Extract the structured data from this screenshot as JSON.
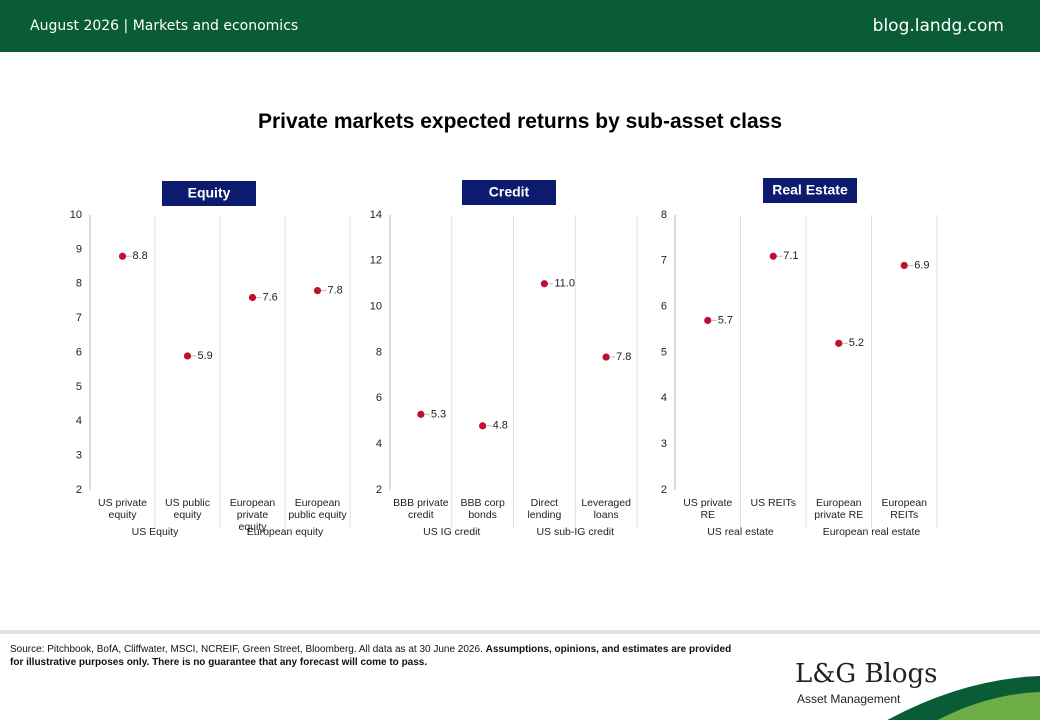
{
  "header": {
    "left": "August 2026 | Markets and economics",
    "right": "blog.landg.com"
  },
  "title": "Private markets expected returns by sub-asset class",
  "chart_data": [
    {
      "type": "dot",
      "title": "Equity",
      "color": "#c0102f",
      "categories": [
        "US private equity",
        "US public equity",
        "European private equity",
        "European public equity"
      ],
      "groups": [
        "US Equity",
        "European equity"
      ],
      "values": [
        8.8,
        5.9,
        7.6,
        7.8
      ],
      "ylim": [
        2,
        10
      ],
      "yticks": [
        2,
        3,
        4,
        5,
        6,
        7,
        8,
        9,
        10
      ]
    },
    {
      "type": "dot",
      "title": "Credit",
      "color": "#c0102f",
      "categories": [
        "BBB private credit",
        "BBB corp bonds",
        "Direct lending",
        "Leveraged loans"
      ],
      "groups": [
        "US IG credit",
        "US sub-IG credit"
      ],
      "values": [
        5.3,
        4.8,
        11.0,
        7.8
      ],
      "value_labels": [
        "5.3",
        "4.8",
        "11.0",
        "7.8"
      ],
      "ylim": [
        2,
        14
      ],
      "yticks": [
        2,
        4,
        6,
        8,
        10,
        12,
        14
      ]
    },
    {
      "type": "dot",
      "title": "Real Estate",
      "color": "#c0102f",
      "categories": [
        "US private RE",
        "US REITs",
        "European private RE",
        "European REITs"
      ],
      "groups": [
        "US real estate",
        "European real estate"
      ],
      "values": [
        5.7,
        7.1,
        5.2,
        6.9
      ],
      "ylim": [
        2,
        8
      ],
      "yticks": [
        2,
        3,
        4,
        5,
        6,
        7,
        8
      ]
    }
  ],
  "footer": {
    "source": "Source: Pitchbook, BofA, Cliffwater, MSCI, NCREIF, Green Street, Bloomberg. All data as at 30 June 2026.",
    "disclaimer": "Assumptions, opinions, and estimates are provided for illustrative purposes only. There is no guarantee that any forecast will come to pass.",
    "logo": "L&G Blogs",
    "logo_sub": "Asset Management"
  }
}
